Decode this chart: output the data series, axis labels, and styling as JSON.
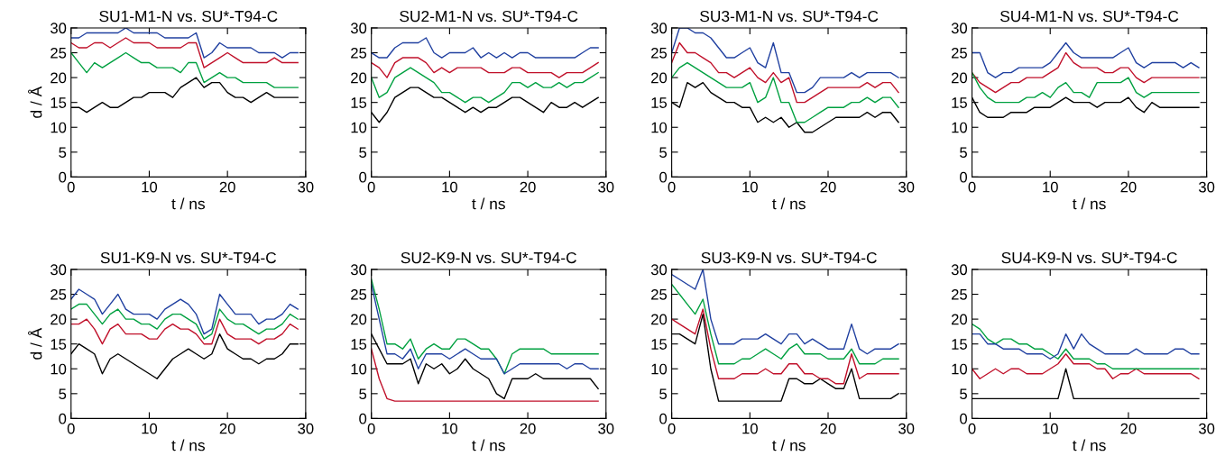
{
  "chart_data": [
    {
      "type": "line",
      "title": "SU1-M1-N vs. SU*-T94-C",
      "xlabel": "t / ns",
      "ylabel": "d / Å",
      "xlim": [
        0,
        30
      ],
      "ylim": [
        0,
        30
      ],
      "xticks": [
        0,
        10,
        20,
        30
      ],
      "yticks": [
        0,
        5,
        10,
        15,
        20,
        25,
        30
      ],
      "x": [
        0,
        1,
        2,
        3,
        4,
        5,
        6,
        7,
        8,
        9,
        10,
        11,
        12,
        13,
        14,
        15,
        16,
        17,
        18,
        19,
        20,
        21,
        22,
        23,
        24,
        25,
        26,
        27,
        28,
        29
      ],
      "series": [
        {
          "color": "#000000",
          "values": [
            14,
            14,
            13,
            14,
            15,
            14,
            14,
            15,
            16,
            16,
            17,
            17,
            17,
            16,
            18,
            19,
            20,
            18,
            19,
            19,
            17,
            16,
            16,
            15,
            16,
            17,
            16,
            16,
            16,
            16
          ]
        },
        {
          "color": "#c0102a",
          "values": [
            27,
            26,
            26,
            27,
            27,
            26,
            27,
            28,
            27,
            27,
            27,
            26,
            26,
            26,
            26,
            27,
            27,
            22,
            23,
            24,
            25,
            24,
            23,
            23,
            23,
            23,
            24,
            23,
            23,
            23
          ]
        },
        {
          "color": "#00a040",
          "values": [
            25,
            23,
            21,
            23,
            22,
            23,
            24,
            25,
            24,
            23,
            23,
            22,
            22,
            22,
            21,
            23,
            23,
            19,
            20,
            21,
            20,
            20,
            19,
            19,
            19,
            19,
            18,
            18,
            18,
            18
          ]
        },
        {
          "color": "#2040a0",
          "values": [
            28,
            28,
            29,
            29,
            29,
            29,
            29,
            30,
            29,
            29,
            29,
            29,
            28,
            28,
            28,
            28,
            29,
            24,
            25,
            27,
            26,
            26,
            26,
            26,
            25,
            25,
            25,
            24,
            25,
            25
          ]
        }
      ]
    },
    {
      "type": "line",
      "title": "SU2-M1-N vs. SU*-T94-C",
      "xlabel": "t / ns",
      "xlim": [
        0,
        30
      ],
      "ylim": [
        0,
        30
      ],
      "xticks": [
        0,
        10,
        20,
        30
      ],
      "yticks": [
        0,
        5,
        10,
        15,
        20,
        25,
        30
      ],
      "x": [
        0,
        1,
        2,
        3,
        4,
        5,
        6,
        7,
        8,
        9,
        10,
        11,
        12,
        13,
        14,
        15,
        16,
        17,
        18,
        19,
        20,
        21,
        22,
        23,
        24,
        25,
        26,
        27,
        28,
        29
      ],
      "series": [
        {
          "color": "#000000",
          "values": [
            13,
            11,
            13,
            16,
            17,
            18,
            18,
            17,
            16,
            16,
            15,
            14,
            13,
            14,
            13,
            14,
            14,
            15,
            16,
            16,
            15,
            14,
            13,
            15,
            14,
            14,
            15,
            14,
            15,
            16
          ]
        },
        {
          "color": "#c0102a",
          "values": [
            23,
            22,
            20,
            23,
            24,
            24,
            24,
            23,
            21,
            22,
            21,
            22,
            22,
            22,
            22,
            21,
            21,
            21,
            22,
            22,
            21,
            21,
            21,
            21,
            20,
            21,
            21,
            21,
            22,
            23
          ]
        },
        {
          "color": "#00a040",
          "values": [
            20,
            16,
            17,
            20,
            21,
            22,
            21,
            20,
            19,
            17,
            17,
            16,
            15,
            16,
            16,
            15,
            16,
            17,
            19,
            19,
            18,
            19,
            18,
            18,
            19,
            18,
            19,
            19,
            20,
            21
          ]
        },
        {
          "color": "#2040a0",
          "values": [
            25,
            24,
            24,
            26,
            27,
            27,
            27,
            28,
            25,
            24,
            25,
            25,
            25,
            26,
            24,
            25,
            24,
            25,
            24,
            25,
            25,
            24,
            24,
            24,
            24,
            24,
            24,
            25,
            26,
            26
          ]
        }
      ]
    },
    {
      "type": "line",
      "title": "SU3-M1-N vs. SU*-T94-C",
      "xlabel": "t / ns",
      "xlim": [
        0,
        30
      ],
      "ylim": [
        0,
        30
      ],
      "xticks": [
        0,
        10,
        20,
        30
      ],
      "yticks": [
        0,
        5,
        10,
        15,
        20,
        25,
        30
      ],
      "x": [
        0,
        1,
        2,
        3,
        4,
        5,
        6,
        7,
        8,
        9,
        10,
        11,
        12,
        13,
        14,
        15,
        16,
        17,
        18,
        19,
        20,
        21,
        22,
        23,
        24,
        25,
        26,
        27,
        28,
        29
      ],
      "series": [
        {
          "color": "#000000",
          "values": [
            15,
            14,
            19,
            18,
            19,
            17,
            16,
            15,
            15,
            14,
            14,
            11,
            12,
            11,
            12,
            10,
            11,
            9,
            9,
            10,
            11,
            12,
            12,
            12,
            12,
            13,
            12,
            13,
            13,
            11
          ]
        },
        {
          "color": "#c0102a",
          "values": [
            23,
            27,
            25,
            25,
            24,
            23,
            21,
            21,
            20,
            21,
            22,
            20,
            19,
            21,
            19,
            20,
            15,
            15,
            16,
            17,
            18,
            18,
            18,
            18,
            18,
            19,
            18,
            19,
            19,
            17
          ]
        },
        {
          "color": "#00a040",
          "values": [
            20,
            22,
            23,
            22,
            21,
            20,
            19,
            18,
            18,
            18,
            19,
            15,
            16,
            20,
            15,
            15,
            11,
            11,
            12,
            13,
            14,
            14,
            14,
            15,
            15,
            16,
            15,
            16,
            16,
            14
          ]
        },
        {
          "color": "#2040a0",
          "values": [
            25,
            30,
            30,
            29,
            29,
            28,
            26,
            24,
            24,
            25,
            26,
            23,
            22,
            27,
            21,
            21,
            17,
            17,
            18,
            20,
            20,
            20,
            20,
            21,
            20,
            21,
            21,
            21,
            21,
            20
          ]
        }
      ]
    },
    {
      "type": "line",
      "title": "SU4-M1-N vs. SU*-T94-C",
      "xlabel": "t / ns",
      "xlim": [
        0,
        30
      ],
      "ylim": [
        0,
        30
      ],
      "xticks": [
        0,
        10,
        20,
        30
      ],
      "yticks": [
        0,
        5,
        10,
        15,
        20,
        25,
        30
      ],
      "x": [
        0,
        1,
        2,
        3,
        4,
        5,
        6,
        7,
        8,
        9,
        10,
        11,
        12,
        13,
        14,
        15,
        16,
        17,
        18,
        19,
        20,
        21,
        22,
        23,
        24,
        25,
        26,
        27,
        28,
        29
      ],
      "series": [
        {
          "color": "#000000",
          "values": [
            16,
            13,
            12,
            12,
            12,
            13,
            13,
            13,
            14,
            14,
            14,
            15,
            16,
            15,
            15,
            15,
            14,
            15,
            15,
            15,
            16,
            14,
            13,
            15,
            14,
            14,
            14,
            14,
            14,
            14
          ]
        },
        {
          "color": "#c0102a",
          "values": [
            21,
            19,
            18,
            17,
            18,
            19,
            19,
            20,
            20,
            20,
            21,
            22,
            25,
            23,
            22,
            22,
            22,
            21,
            21,
            22,
            22,
            20,
            19,
            20,
            20,
            20,
            20,
            20,
            20,
            20
          ]
        },
        {
          "color": "#00a040",
          "values": [
            21,
            18,
            16,
            15,
            15,
            15,
            15,
            16,
            16,
            17,
            16,
            18,
            19,
            17,
            17,
            16,
            19,
            19,
            19,
            19,
            20,
            17,
            16,
            17,
            17,
            17,
            17,
            17,
            17,
            17
          ]
        },
        {
          "color": "#2040a0",
          "values": [
            25,
            25,
            21,
            20,
            21,
            21,
            22,
            22,
            22,
            22,
            23,
            25,
            27,
            25,
            24,
            24,
            24,
            24,
            24,
            25,
            26,
            23,
            22,
            23,
            23,
            23,
            23,
            22,
            23,
            22
          ]
        }
      ]
    },
    {
      "type": "line",
      "title": "SU1-K9-N vs. SU*-T94-C",
      "xlabel": "t / ns",
      "ylabel": "d / Å",
      "xlim": [
        0,
        30
      ],
      "ylim": [
        0,
        30
      ],
      "xticks": [
        0,
        10,
        20,
        30
      ],
      "yticks": [
        0,
        5,
        10,
        15,
        20,
        25,
        30
      ],
      "x": [
        0,
        1,
        2,
        3,
        4,
        5,
        6,
        7,
        8,
        9,
        10,
        11,
        12,
        13,
        14,
        15,
        16,
        17,
        18,
        19,
        20,
        21,
        22,
        23,
        24,
        25,
        26,
        27,
        28,
        29
      ],
      "series": [
        {
          "color": "#000000",
          "values": [
            13,
            15,
            14,
            13,
            9,
            12,
            13,
            12,
            11,
            10,
            9,
            8,
            10,
            12,
            13,
            14,
            13,
            12,
            13,
            17,
            14,
            13,
            12,
            12,
            11,
            12,
            12,
            13,
            15,
            15
          ]
        },
        {
          "color": "#c0102a",
          "values": [
            19,
            19,
            20,
            18,
            15,
            18,
            19,
            17,
            17,
            17,
            16,
            16,
            18,
            19,
            18,
            18,
            17,
            15,
            15,
            20,
            17,
            16,
            16,
            16,
            15,
            16,
            16,
            17,
            19,
            18
          ]
        },
        {
          "color": "#00a040",
          "values": [
            22,
            23,
            23,
            21,
            19,
            21,
            22,
            20,
            20,
            19,
            19,
            18,
            20,
            21,
            21,
            20,
            19,
            16,
            17,
            22,
            20,
            19,
            19,
            18,
            17,
            18,
            18,
            19,
            21,
            20
          ]
        },
        {
          "color": "#2040a0",
          "values": [
            24,
            26,
            25,
            24,
            21,
            23,
            25,
            22,
            21,
            21,
            21,
            20,
            22,
            23,
            24,
            23,
            21,
            17,
            18,
            25,
            23,
            21,
            21,
            21,
            19,
            20,
            20,
            21,
            23,
            22
          ]
        }
      ]
    },
    {
      "type": "line",
      "title": "SU2-K9-N vs. SU*-T94-C",
      "xlabel": "t / ns",
      "xlim": [
        0,
        30
      ],
      "ylim": [
        0,
        30
      ],
      "xticks": [
        0,
        10,
        20,
        30
      ],
      "yticks": [
        0,
        5,
        10,
        15,
        20,
        25,
        30
      ],
      "x": [
        0,
        1,
        2,
        3,
        4,
        5,
        6,
        7,
        8,
        9,
        10,
        11,
        12,
        13,
        14,
        15,
        16,
        17,
        18,
        19,
        20,
        21,
        22,
        23,
        24,
        25,
        26,
        27,
        28,
        29
      ],
      "series": [
        {
          "color": "#000000",
          "values": [
            17,
            14,
            11,
            11,
            11,
            12,
            7,
            11,
            10,
            11,
            9,
            10,
            12,
            10,
            9,
            8,
            5,
            4,
            8,
            8,
            8,
            9,
            8,
            8,
            8,
            8,
            8,
            8,
            8,
            6
          ]
        },
        {
          "color": "#c0102a",
          "values": [
            14,
            8,
            4,
            3.5,
            3.5,
            3.5,
            3.5,
            3.5,
            3.5,
            3.5,
            3.5,
            3.5,
            3.5,
            3.5,
            3.5,
            3.5,
            3.5,
            3.5,
            3.5,
            3.5,
            3.5,
            3.5,
            3.5,
            3.5,
            3.5,
            3.5,
            3.5,
            3.5,
            3.5,
            3.5
          ]
        },
        {
          "color": "#00a040",
          "values": [
            28,
            22,
            15,
            15,
            14,
            16,
            12,
            14,
            15,
            14,
            14,
            16,
            16,
            15,
            14,
            14,
            12,
            9,
            13,
            14,
            14,
            14,
            14,
            13,
            13,
            13,
            13,
            13,
            13,
            13
          ]
        },
        {
          "color": "#2040a0",
          "values": [
            27,
            20,
            13,
            13,
            12,
            14,
            10,
            13,
            13,
            13,
            12,
            13,
            14,
            13,
            12,
            12,
            12,
            9,
            10,
            11,
            11,
            11,
            11,
            11,
            11,
            10,
            11,
            11,
            10,
            10
          ]
        }
      ]
    },
    {
      "type": "line",
      "title": "SU3-K9-N vs. SU*-T94-C",
      "xlabel": "t / ns",
      "xlim": [
        0,
        30
      ],
      "ylim": [
        0,
        30
      ],
      "xticks": [
        0,
        10,
        20,
        30
      ],
      "yticks": [
        0,
        5,
        10,
        15,
        20,
        25,
        30
      ],
      "x": [
        0,
        1,
        2,
        3,
        4,
        5,
        6,
        7,
        8,
        9,
        10,
        11,
        12,
        13,
        14,
        15,
        16,
        17,
        18,
        19,
        20,
        21,
        22,
        23,
        24,
        25,
        26,
        27,
        28,
        29
      ],
      "series": [
        {
          "color": "#000000",
          "values": [
            17,
            17,
            16,
            15,
            21,
            10,
            3.5,
            3.5,
            3.5,
            3.5,
            3.5,
            3.5,
            3.5,
            3.5,
            3.5,
            8,
            8,
            7,
            7,
            8,
            7,
            6,
            6,
            10,
            4,
            4,
            4,
            4,
            4,
            5
          ]
        },
        {
          "color": "#c0102a",
          "values": [
            20,
            19,
            18,
            17,
            22,
            14,
            8,
            8,
            8,
            9,
            9,
            9,
            10,
            9,
            9,
            11,
            11,
            9,
            9,
            8,
            8,
            7,
            7,
            13,
            8,
            9,
            9,
            9,
            9,
            9
          ]
        },
        {
          "color": "#00a040",
          "values": [
            27,
            25,
            23,
            21,
            24,
            17,
            11,
            11,
            11,
            12,
            12,
            13,
            14,
            13,
            12,
            14,
            15,
            13,
            13,
            13,
            12,
            12,
            12,
            14,
            11,
            11,
            11,
            12,
            12,
            12
          ]
        },
        {
          "color": "#2040a0",
          "values": [
            29,
            28,
            27,
            26,
            30,
            20,
            15,
            15,
            15,
            16,
            16,
            16,
            17,
            16,
            15,
            17,
            17,
            15,
            16,
            15,
            14,
            14,
            14,
            19,
            14,
            13,
            14,
            14,
            14,
            15
          ]
        }
      ]
    },
    {
      "type": "line",
      "title": "SU4-K9-N vs. SU*-T94-C",
      "xlabel": "t / ns",
      "xlim": [
        0,
        30
      ],
      "ylim": [
        0,
        30
      ],
      "xticks": [
        0,
        10,
        20,
        30
      ],
      "yticks": [
        0,
        5,
        10,
        15,
        20,
        25,
        30
      ],
      "x": [
        0,
        1,
        2,
        3,
        4,
        5,
        6,
        7,
        8,
        9,
        10,
        11,
        12,
        13,
        14,
        15,
        16,
        17,
        18,
        19,
        20,
        21,
        22,
        23,
        24,
        25,
        26,
        27,
        28,
        29
      ],
      "series": [
        {
          "color": "#000000",
          "values": [
            4,
            4,
            4,
            4,
            4,
            4,
            4,
            4,
            4,
            4,
            4,
            4,
            10,
            4,
            4,
            4,
            4,
            4,
            4,
            4,
            4,
            4,
            4,
            4,
            4,
            4,
            4,
            4,
            4,
            4
          ]
        },
        {
          "color": "#c0102a",
          "values": [
            10,
            8,
            9,
            10,
            9,
            10,
            10,
            9,
            9,
            9,
            10,
            11,
            13,
            11,
            11,
            11,
            10,
            10,
            8,
            9,
            9,
            10,
            9,
            9,
            9,
            9,
            9,
            9,
            9,
            8
          ]
        },
        {
          "color": "#00a040",
          "values": [
            19,
            18,
            16,
            15,
            16,
            16,
            15,
            15,
            14,
            14,
            13,
            12,
            14,
            12,
            12,
            12,
            11,
            11,
            10,
            10,
            10,
            10,
            10,
            10,
            10,
            10,
            10,
            10,
            10,
            10
          ]
        },
        {
          "color": "#2040a0",
          "values": [
            17,
            17,
            15,
            15,
            14,
            14,
            14,
            13,
            13,
            13,
            12,
            13,
            17,
            14,
            17,
            15,
            14,
            13,
            13,
            13,
            13,
            14,
            13,
            13,
            13,
            13,
            14,
            14,
            13,
            13
          ]
        }
      ]
    }
  ]
}
